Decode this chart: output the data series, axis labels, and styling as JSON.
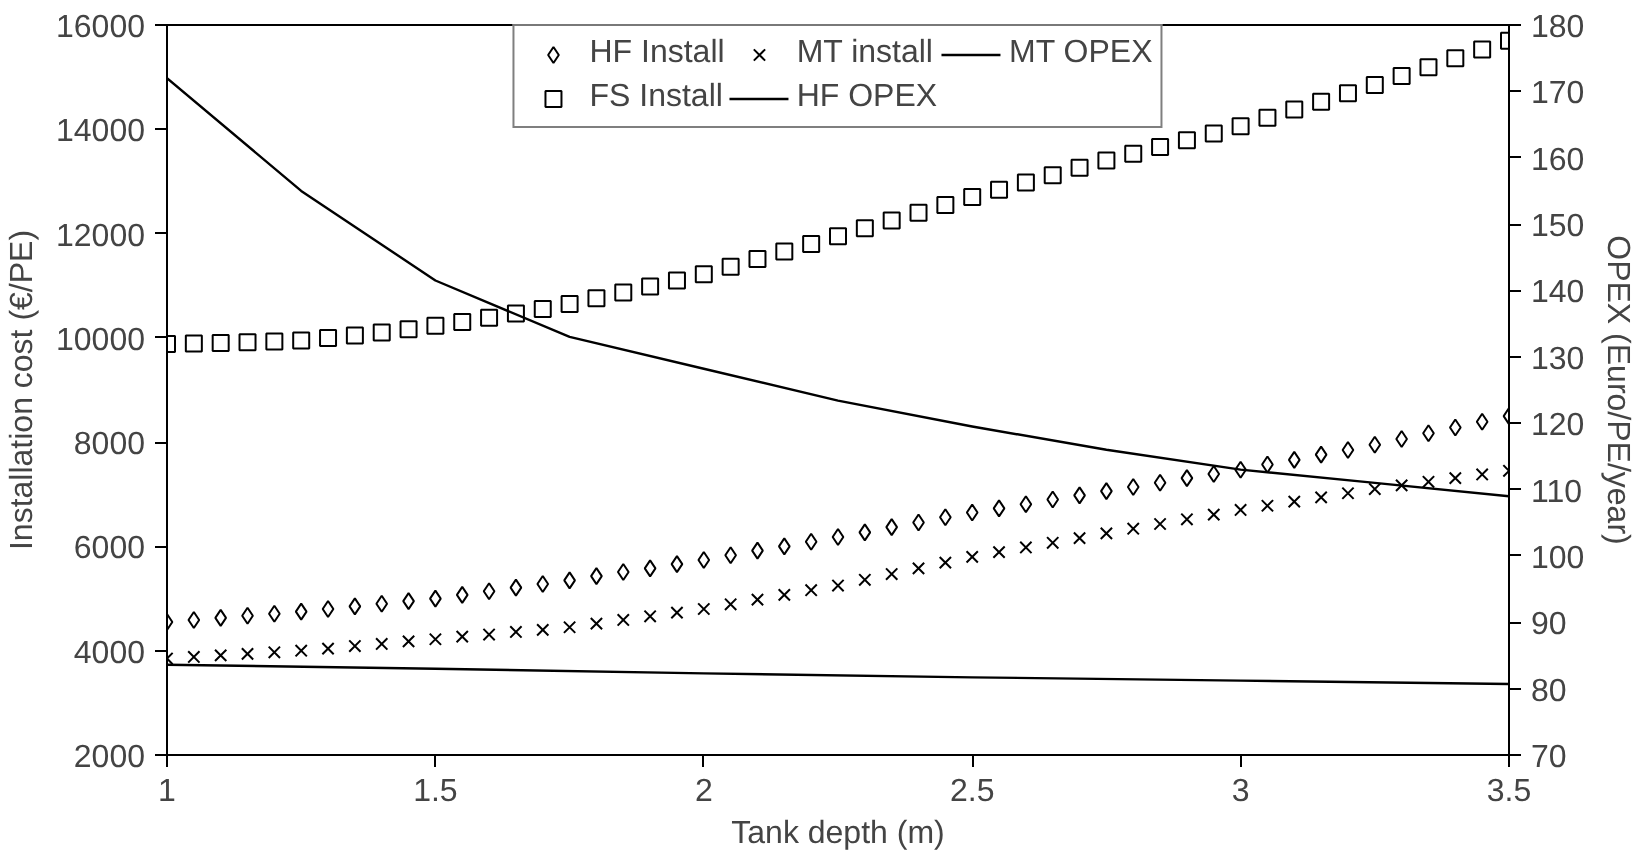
{
  "chart_data": {
    "type": "scatter",
    "xlabel": "Tank depth (m)",
    "ylabel": "Installation cost (€/PE)",
    "y2label": "OPEX (Euro/PE/year)",
    "x": [
      1,
      1.05,
      1.1,
      1.15,
      1.2,
      1.25,
      1.3,
      1.35,
      1.4,
      1.45,
      1.5,
      1.55,
      1.6,
      1.65,
      1.7,
      1.75,
      1.8,
      1.85,
      1.9,
      1.95,
      2,
      2.05,
      2.1,
      2.15,
      2.2,
      2.25,
      2.3,
      2.35,
      2.4,
      2.45,
      2.5,
      2.55,
      2.6,
      2.65,
      2.7,
      2.75,
      2.8,
      2.85,
      2.9,
      2.95,
      3,
      3.05,
      3.1,
      3.15,
      3.2,
      3.25,
      3.3,
      3.35,
      3.4,
      3.45,
      3.5
    ],
    "series": [
      {
        "name": "HF Install",
        "color": "#000000",
        "marker": "diamond",
        "values": [
          4550,
          4590,
          4630,
          4670,
          4710,
          4750,
          4800,
          4850,
          4900,
          4950,
          5000,
          5070,
          5140,
          5210,
          5280,
          5350,
          5430,
          5510,
          5580,
          5660,
          5740,
          5830,
          5920,
          6000,
          6090,
          6180,
          6270,
          6370,
          6460,
          6560,
          6650,
          6730,
          6810,
          6900,
          6980,
          7060,
          7140,
          7220,
          7310,
          7390,
          7470,
          7570,
          7660,
          7760,
          7850,
          7950,
          8060,
          8170,
          8280,
          8390,
          8500
        ]
      },
      {
        "name": "FS Install",
        "color": "#000000",
        "marker": "square",
        "values": [
          9880,
          9890,
          9900,
          9915,
          9930,
          9950,
          9995,
          10045,
          10105,
          10165,
          10230,
          10305,
          10385,
          10465,
          10555,
          10650,
          10760,
          10870,
          10985,
          11100,
          11220,
          11365,
          11510,
          11655,
          11800,
          11950,
          12100,
          12250,
          12400,
          12550,
          12700,
          12840,
          12980,
          13120,
          13260,
          13400,
          13530,
          13660,
          13790,
          13920,
          14060,
          14220,
          14380,
          14530,
          14690,
          14850,
          15020,
          15190,
          15360,
          15530,
          15700
        ]
      },
      {
        "name": "MT install",
        "color": "#000000",
        "marker": "cross",
        "values": [
          3850,
          3880,
          3910,
          3940,
          3970,
          4000,
          4040,
          4090,
          4130,
          4180,
          4220,
          4270,
          4310,
          4360,
          4400,
          4450,
          4520,
          4590,
          4660,
          4730,
          4800,
          4890,
          4980,
          5070,
          5160,
          5250,
          5360,
          5470,
          5580,
          5690,
          5800,
          5890,
          5980,
          6070,
          6160,
          6250,
          6340,
          6430,
          6520,
          6610,
          6700,
          6780,
          6860,
          6940,
          7020,
          7100,
          7170,
          7240,
          7310,
          7380,
          7450
        ]
      },
      {
        "name": "HF OPEX",
        "type": "line",
        "axis": "y2",
        "color": "#000000",
        "line_style": "solid",
        "x": [
          1,
          1.25,
          1.5,
          1.75,
          2,
          2.25,
          2.5,
          2.75,
          3,
          3.25,
          3.5
        ],
        "values": [
          172,
          155,
          141.5,
          133,
          128.2,
          123.4,
          119.5,
          116,
          113,
          111,
          109
        ]
      },
      {
        "name": "MT OPEX",
        "type": "line",
        "axis": "y2",
        "color": "#000000",
        "line_style": "solid",
        "x": [
          1,
          1.5,
          2,
          2.5,
          3,
          3.5
        ],
        "values": [
          83.6,
          83,
          82.3,
          81.7,
          81.2,
          80.7
        ]
      }
    ],
    "xlim": [
      1,
      3.5
    ],
    "xticks": [
      1,
      1.5,
      2,
      2.5,
      3,
      3.5
    ],
    "ylim": [
      2000,
      16000
    ],
    "yticks": [
      2000,
      4000,
      6000,
      8000,
      10000,
      12000,
      14000,
      16000
    ],
    "y2lim": [
      70,
      180
    ],
    "y2ticks": [
      70,
      80,
      90,
      100,
      110,
      120,
      130,
      140,
      150,
      160,
      170,
      180
    ],
    "grid": false,
    "legend": "top"
  }
}
